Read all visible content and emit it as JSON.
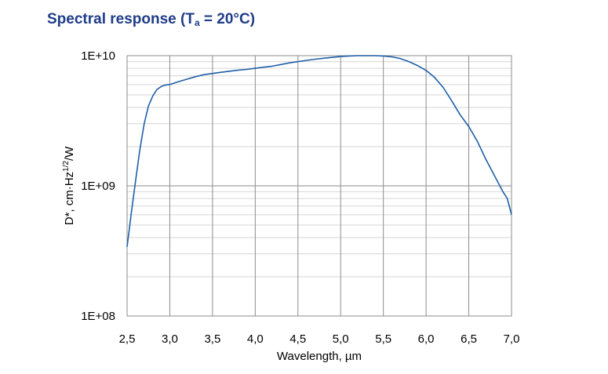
{
  "chart_data": {
    "type": "line",
    "title_main": "Spectral response (T",
    "title_sub": "a",
    "title_tail": " = 20°C)",
    "xlabel": "Wavelength, µm",
    "ylabel": "D*, cm·Hz",
    "ylabel_sup": "1/2",
    "ylabel_tail": "/W",
    "xlim": [
      2.5,
      7.0
    ],
    "ylim": [
      100000000,
      10000000000
    ],
    "yscale": "log",
    "grid": true,
    "x_ticks": [
      {
        "value": 2.5,
        "label": "2,5"
      },
      {
        "value": 3.0,
        "label": "3,0"
      },
      {
        "value": 3.5,
        "label": "3,5"
      },
      {
        "value": 4.0,
        "label": "4,0"
      },
      {
        "value": 4.5,
        "label": "4,5"
      },
      {
        "value": 5.0,
        "label": "5,0"
      },
      {
        "value": 5.5,
        "label": "5,5"
      },
      {
        "value": 6.0,
        "label": "6,0"
      },
      {
        "value": 6.5,
        "label": "6,5"
      },
      {
        "value": 7.0,
        "label": "7,0"
      }
    ],
    "y_ticks": [
      {
        "value": 100000000,
        "label": "1E+08"
      },
      {
        "value": 1000000000,
        "label": "1E+09"
      },
      {
        "value": 10000000000,
        "label": "1E+10"
      }
    ],
    "series": [
      {
        "color": "#1f5fa8",
        "x": [
          2.5,
          2.55,
          2.6,
          2.65,
          2.7,
          2.75,
          2.8,
          2.85,
          2.9,
          2.95,
          3.0,
          3.1,
          3.2,
          3.3,
          3.4,
          3.5,
          3.6,
          3.7,
          3.8,
          3.9,
          4.0,
          4.1,
          4.2,
          4.3,
          4.4,
          4.5,
          4.6,
          4.7,
          4.8,
          4.9,
          5.0,
          5.1,
          5.2,
          5.3,
          5.4,
          5.5,
          5.6,
          5.7,
          5.8,
          5.9,
          6.0,
          6.1,
          6.2,
          6.3,
          6.4,
          6.5,
          6.6,
          6.7,
          6.8,
          6.9,
          6.95,
          7.0
        ],
        "y": [
          340000000,
          620000000,
          1100000000,
          1900000000,
          3000000000,
          4100000000,
          4900000000,
          5500000000,
          5800000000,
          5950000000,
          6000000000,
          6300000000,
          6600000000,
          6900000000,
          7150000000,
          7300000000,
          7450000000,
          7600000000,
          7750000000,
          7850000000,
          8000000000,
          8150000000,
          8300000000,
          8550000000,
          8800000000,
          9000000000,
          9200000000,
          9400000000,
          9550000000,
          9700000000,
          9850000000,
          9950000000,
          10000000000,
          10000000000,
          10000000000,
          9950000000,
          9800000000,
          9500000000,
          9000000000,
          8400000000,
          7700000000,
          6800000000,
          5700000000,
          4500000000,
          3500000000,
          2850000000,
          2200000000,
          1600000000,
          1200000000,
          900000000,
          800000000,
          600000000
        ]
      }
    ]
  }
}
